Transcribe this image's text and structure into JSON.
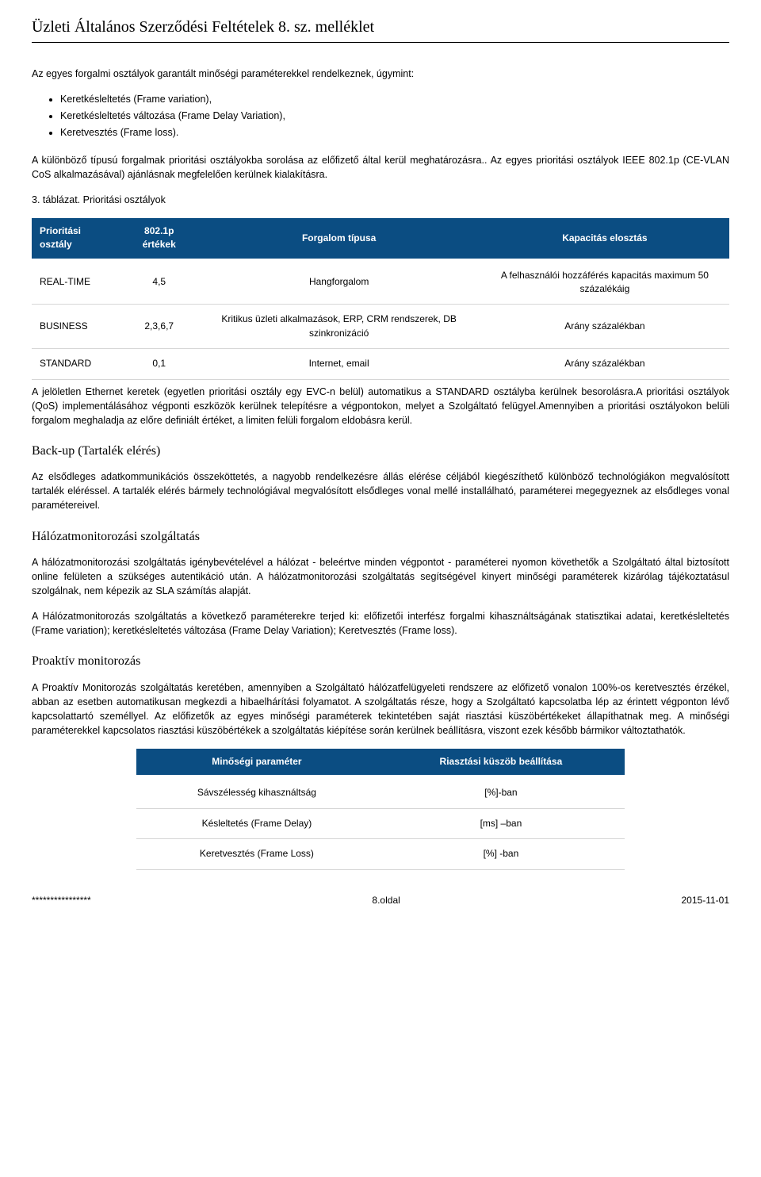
{
  "header": "Üzleti Általános Szerződési Feltételek 8. sz. melléklet",
  "intro": "Az egyes forgalmi osztályok garantált minőségi paraméterekkel rendelkeznek, úgymint:",
  "bullets": [
    "Keretkésleltetés (Frame variation),",
    "Keretkésleltetés változása (Frame Delay Variation),",
    "Keretvesztés (Frame loss)."
  ],
  "para2": "A különböző típusú forgalmak prioritási osztályokba sorolása az előfizető által kerül meghatározásra.. Az egyes prioritási osztályok IEEE 802.1p (CE-VLAN CoS alkalmazásával) ajánlásnak megfelelően kerülnek kialakításra.",
  "table1_caption": "3. táblázat. Prioritási osztályok",
  "table1": {
    "columns": [
      "Prioritási osztály",
      "802.1p értékek",
      "Forgalom típusa",
      "Kapacitás elosztás"
    ],
    "rows": [
      [
        "REAL-TIME",
        "4,5",
        "Hangforgalom",
        "A felhasználói hozzáférés kapacitás maximum 50 százalékáig"
      ],
      [
        "BUSINESS",
        "2,3,6,7",
        "Kritikus üzleti alkalmazások, ERP, CRM rendszerek, DB szinkronizáció",
        "Arány százalékban"
      ],
      [
        "STANDARD",
        "0,1",
        "Internet, email",
        "Arány százalékban"
      ]
    ]
  },
  "para3": "A jelöletlen Ethernet keretek (egyetlen prioritási osztály egy EVC-n belül) automatikus a STANDARD osztályba kerülnek besorolásra.A prioritási osztályok (QoS) implementálásához végponti eszközök kerülnek telepítésre a végpontokon, melyet a Szolgáltató felügyel.Amennyiben a prioritási osztályokon belüli forgalom meghaladja az előre definiált értéket, a limiten felüli forgalom eldobásra kerül.",
  "h_backup": "Back-up (Tartalék elérés)",
  "para_backup": "Az elsődleges adatkommunikációs összeköttetés, a nagyobb rendelkezésre állás elérése céljából kiegészíthető különböző technológiákon megvalósított tartalék eléréssel. A tartalék elérés bármely technológiával megvalósított elsődleges vonal mellé installálható, paraméterei megegyeznek az elsődleges vonal paramétereivel.",
  "h_monitor": "Hálózatmonitorozási szolgáltatás",
  "para_monitor1": "A hálózatmonitorozási szolgáltatás igénybevételével a hálózat - beleértve minden végpontot - paraméterei nyomon követhetők a Szolgáltató által biztosított online felületen a szükséges autentikáció után. A hálózatmonitorozási szolgáltatás segítségével kinyert minőségi paraméterek kizárólag tájékoztatásul szolgálnak, nem képezik az SLA számítás alapját.",
  "para_monitor2": "A Hálózatmonitorozás szolgáltatás a következő paraméterekre terjed ki: előfizetői interfész forgalmi kihasználtságának statisztikai adatai, keretkésleltetés (Frame variation); keretkésleltetés változása (Frame Delay Variation); Keretvesztés (Frame loss).",
  "h_proaktiv": "Proaktív monitorozás",
  "para_proaktiv": "A Proaktív Monitorozás szolgáltatás keretében, amennyiben a Szolgáltató hálózatfelügyeleti rendszere az előfizető vonalon 100%-os keretvesztés érzékel, abban az esetben automatikusan megkezdi a hibaelhárítási folyamatot. A szolgáltatás része, hogy a Szolgáltató kapcsolatba lép az érintett végponton lévő kapcsolattartó személlyel. Az előfizetők az egyes minőségi paraméterek tekintetében saját riasztási küszöbértékeket állapíthatnak meg. A minőségi paraméterekkel kapcsolatos riasztási küszöbértékek a szolgáltatás kiépítése során kerülnek beállításra, viszont ezek később bármikor változtathatók.",
  "table2": {
    "columns": [
      "Minőségi paraméter",
      "Riasztási küszöb beállítása"
    ],
    "rows": [
      [
        "Sávszélesség kihasználtság",
        "[%]-ban"
      ],
      [
        "Késleltetés (Frame Delay)",
        "[ms] –ban"
      ],
      [
        "Keretvesztés (Frame Loss)",
        "[%] -ban"
      ]
    ]
  },
  "footer": {
    "left": "****************",
    "center": "8.oldal",
    "right": "2015-11-01"
  },
  "colors": {
    "header_bg": "#0b4d82",
    "header_fg": "#ffffff",
    "row_border": "#d6d6d6"
  }
}
